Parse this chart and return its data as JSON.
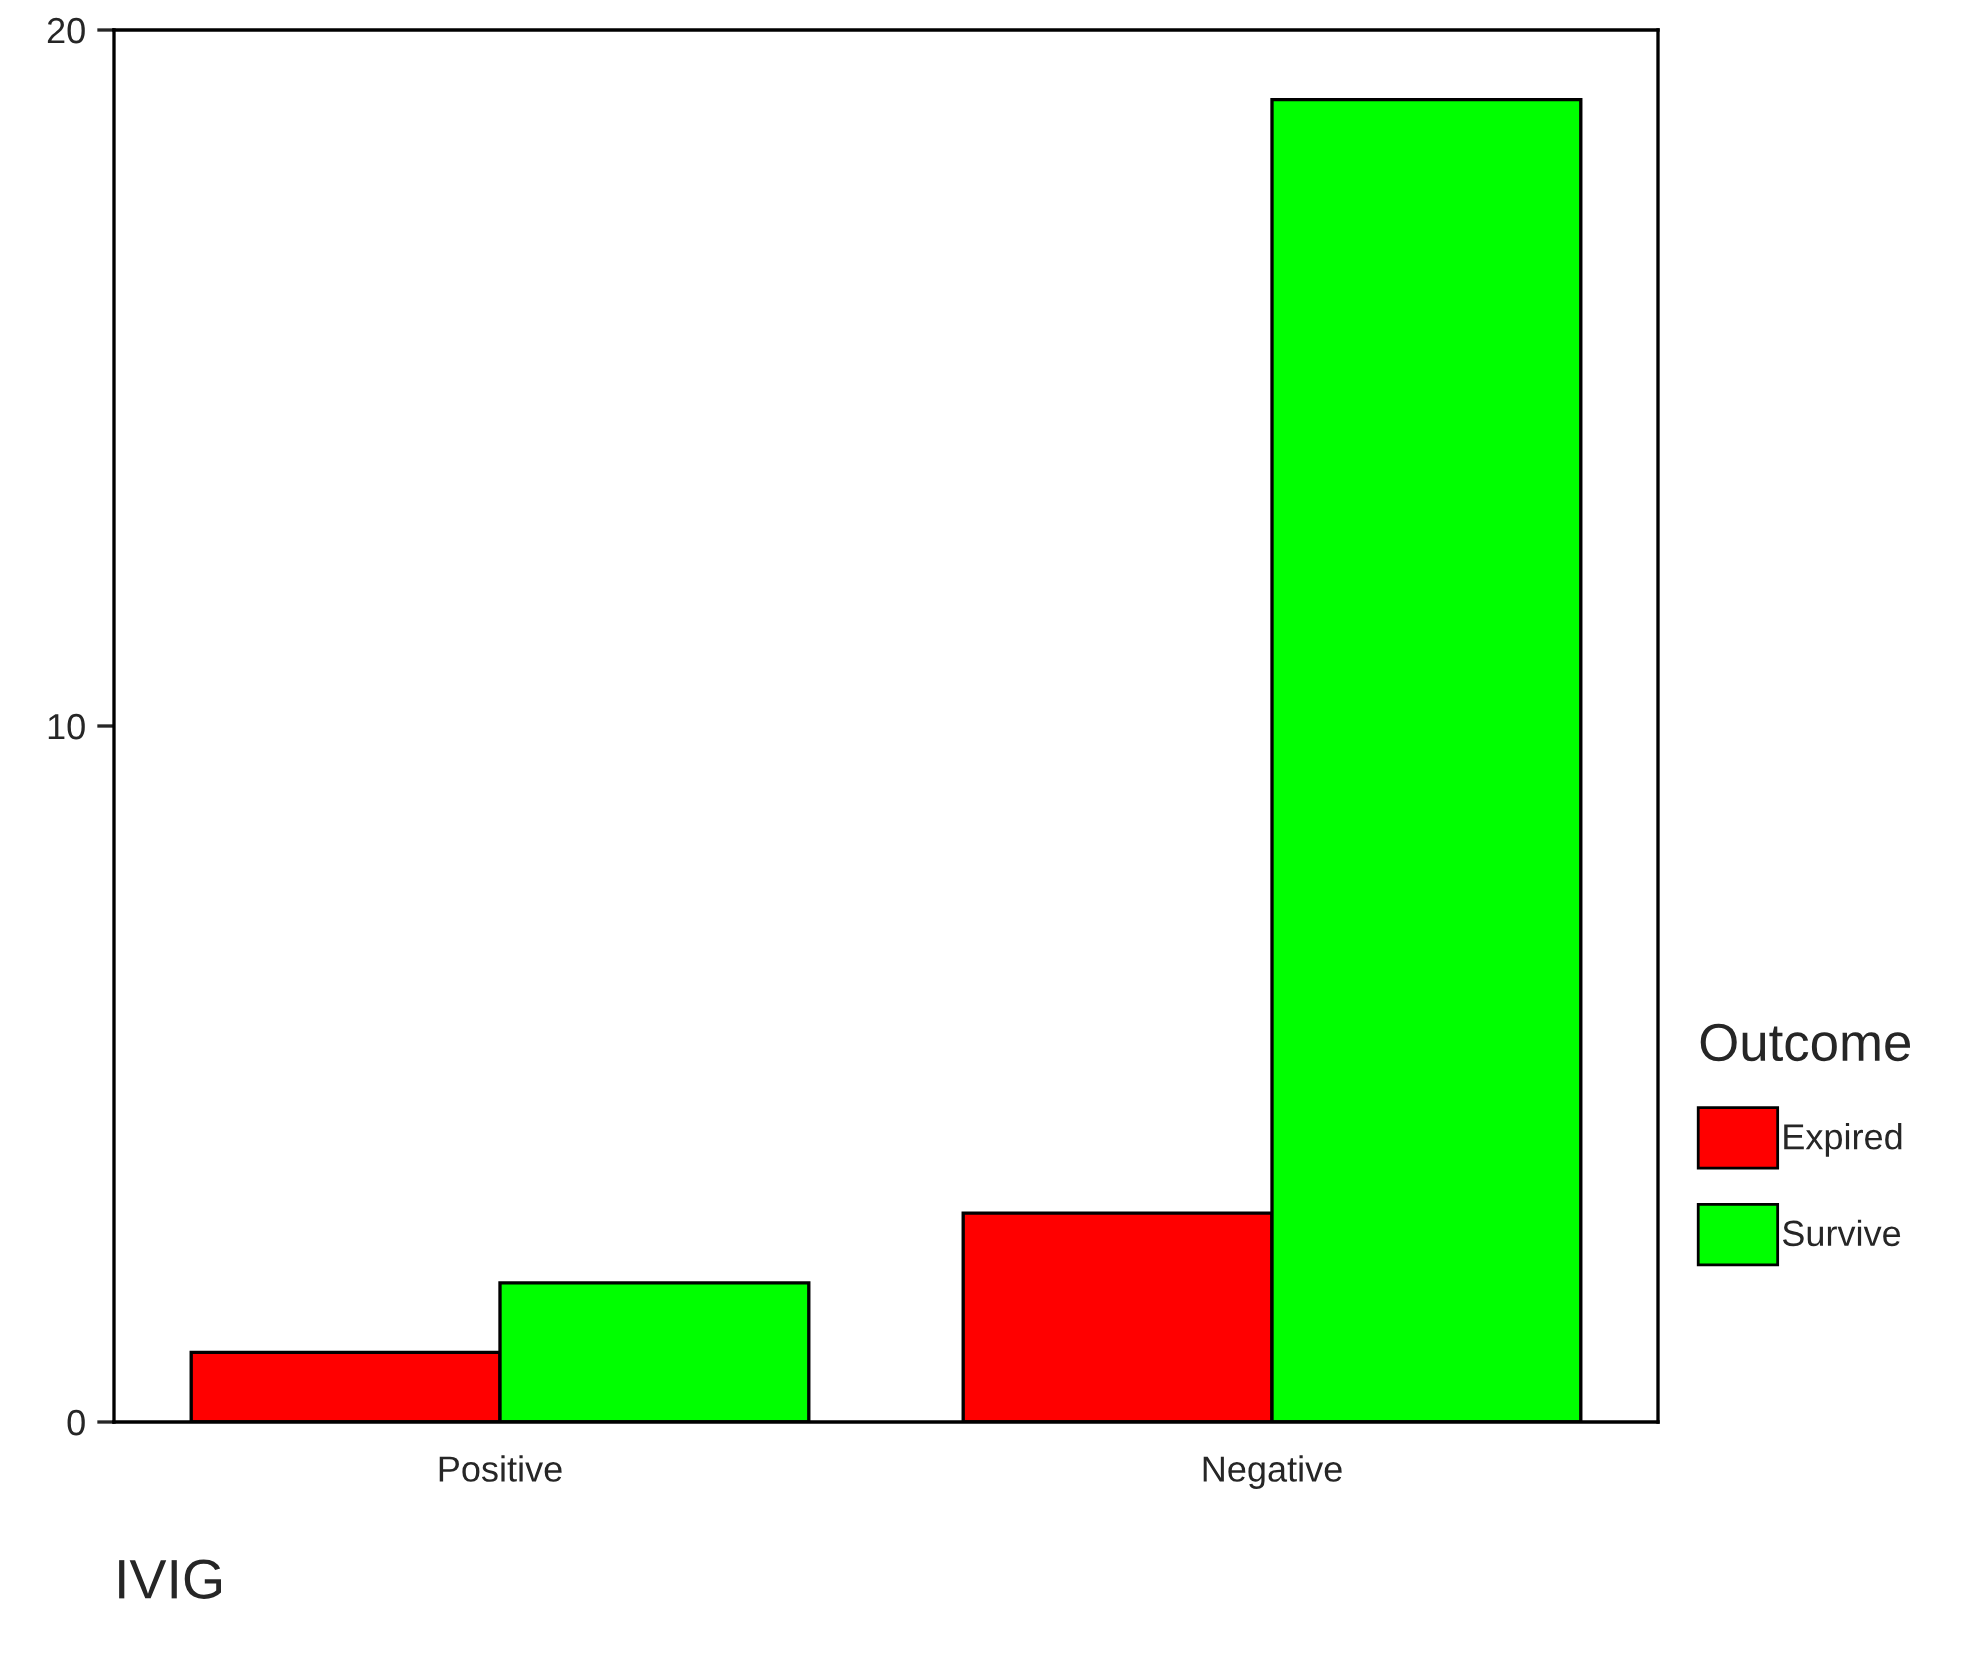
{
  "chart_data": {
    "type": "bar",
    "xlabel": "IVIG",
    "legend_title": "Outcome",
    "categories": [
      "Positive",
      "Negative"
    ],
    "series": [
      {
        "name": "Expired",
        "color": "#ff0000",
        "values": [
          1,
          3
        ]
      },
      {
        "name": "Survive",
        "color": "#00ff00",
        "values": [
          2,
          19
        ]
      }
    ],
    "ylim": [
      0,
      20
    ],
    "yticks": [
      0,
      10,
      20
    ],
    "grid": false,
    "legend": "right"
  }
}
